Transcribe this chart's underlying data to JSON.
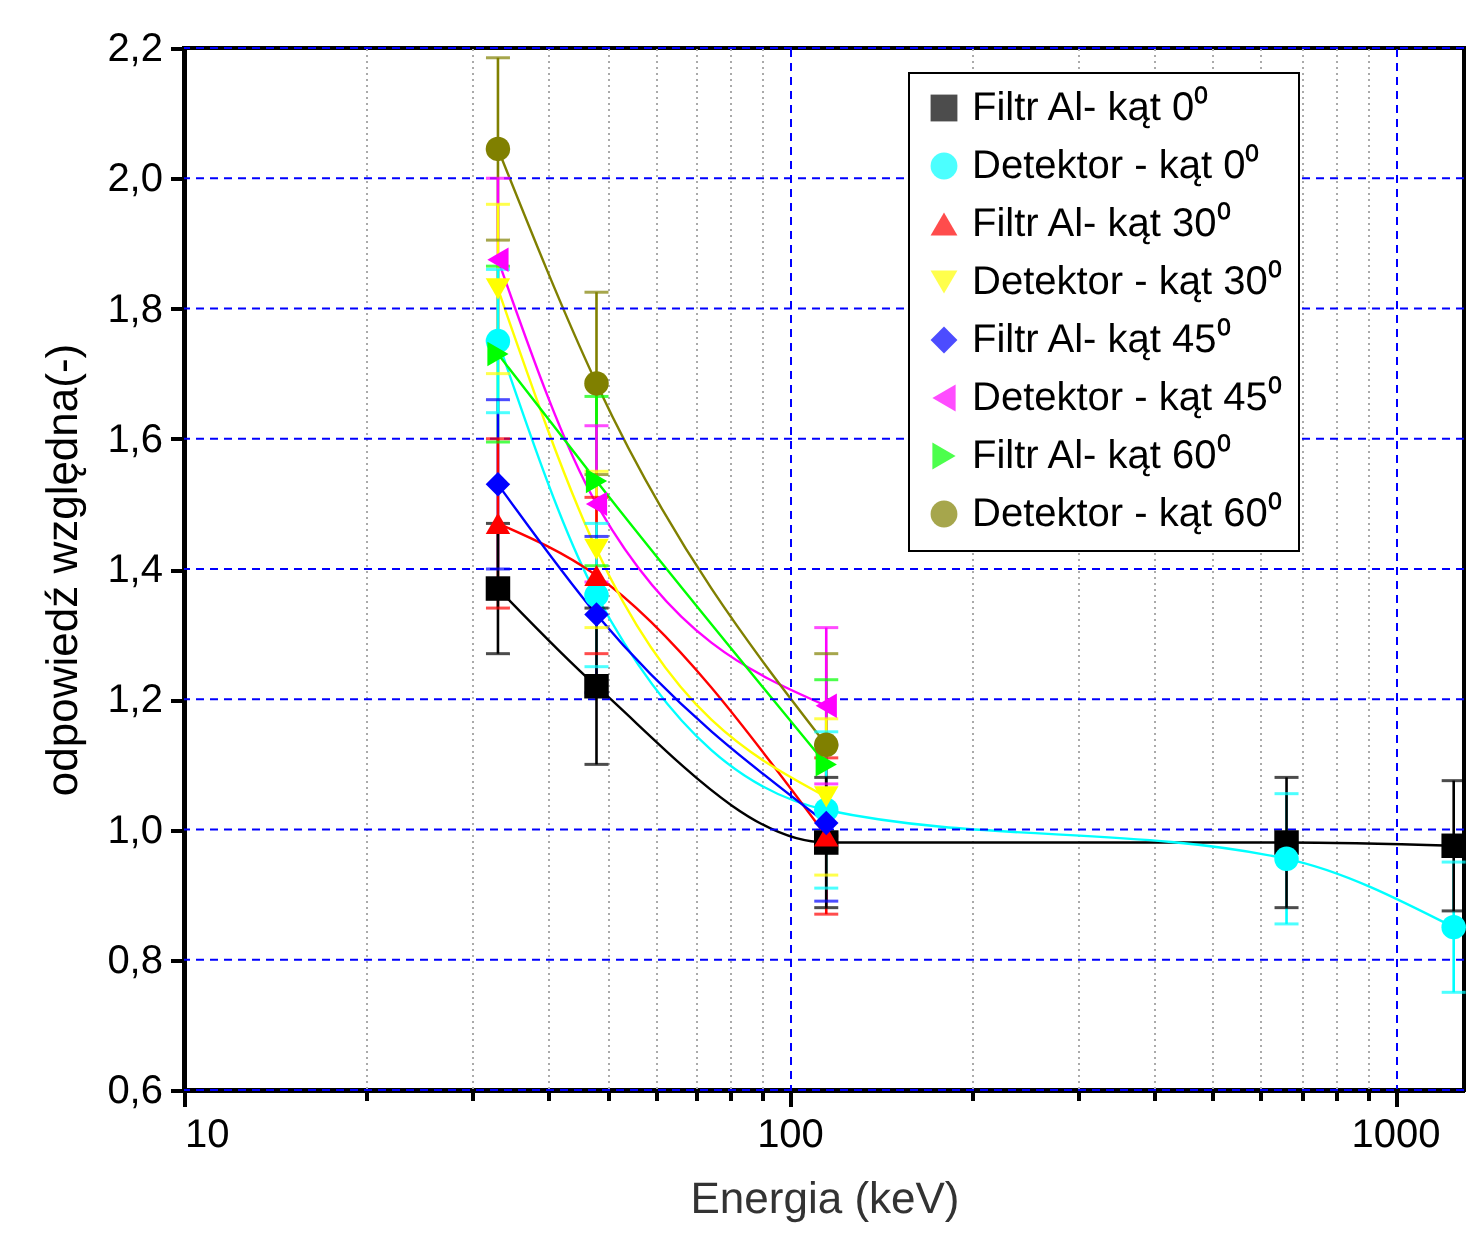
{
  "chart_data": {
    "type": "line",
    "xlabel": "Energia (keV)",
    "ylabel": "odpowiedź względna(-)",
    "log": "x",
    "grid": true,
    "legend": "top right",
    "line_style": "solid",
    "xlim": [
      10,
      1300
    ],
    "ylim": [
      0.6,
      2.2
    ],
    "xticks": [
      10,
      {
        "value": 20,
        "label": null
      },
      {
        "value": 30,
        "label": null
      },
      {
        "value": 40,
        "label": null
      },
      {
        "value": 50,
        "label": null
      },
      {
        "value": 60,
        "label": null
      },
      {
        "value": 70,
        "label": null
      },
      {
        "value": 80,
        "label": null
      },
      {
        "value": 90,
        "label": null
      },
      100,
      {
        "value": 200,
        "label": null
      },
      {
        "value": 300,
        "label": null
      },
      {
        "value": 400,
        "label": null
      },
      {
        "value": 500,
        "label": null
      },
      {
        "value": 600,
        "label": null
      },
      {
        "value": 700,
        "label": null
      },
      {
        "value": 800,
        "label": null
      },
      {
        "value": 900,
        "label": null
      },
      1000
    ],
    "yticks": [
      {
        "value": 0.6,
        "label": "0,6"
      },
      {
        "value": 0.8,
        "label": "0,8"
      },
      {
        "value": 1.0,
        "label": "1,0"
      },
      {
        "value": 1.2,
        "label": "1,2"
      },
      {
        "value": 1.4,
        "label": "1,4"
      },
      {
        "value": 1.6,
        "label": "1,6"
      },
      {
        "value": 1.8,
        "label": "1,8"
      },
      {
        "value": 2.0,
        "label": "2,0"
      },
      {
        "value": 2.2,
        "label": "2,2"
      }
    ],
    "series": [
      {
        "name": "Filtr Al- kąt 0⁰",
        "color": "#000000",
        "marker": "square",
        "x": [
          33,
          48,
          115,
          662,
          1250
        ],
        "values": [
          1.37,
          1.22,
          0.98,
          0.98,
          0.975
        ],
        "errors": [
          0.1,
          0.12,
          0.1,
          0.1,
          0.1
        ]
      },
      {
        "name": "Detektor - kąt 0⁰",
        "color": "#00ffff",
        "marker": "circle",
        "x": [
          33,
          48,
          115,
          662,
          1250
        ],
        "values": [
          1.75,
          1.36,
          1.03,
          0.955,
          0.85
        ],
        "errors": [
          0.11,
          0.11,
          0.12,
          0.1,
          0.1
        ]
      },
      {
        "name": "Filtr Al- kąt 30⁰",
        "color": "#ff0000",
        "marker": "triangle",
        "x": [
          33,
          48,
          115
        ],
        "values": [
          1.47,
          1.39,
          0.99
        ],
        "errors": [
          0.13,
          0.12,
          0.12
        ]
      },
      {
        "name": "Detektor - kąt 30⁰",
        "color": "#ffff00",
        "marker": "triangle-down",
        "x": [
          33,
          48,
          115
        ],
        "values": [
          1.83,
          1.43,
          1.05
        ],
        "errors": [
          0.13,
          0.12,
          0.12
        ]
      },
      {
        "name": "Filtr Al- kąt 45⁰",
        "color": "#0000ff",
        "marker": "diamond",
        "x": [
          33,
          48,
          115
        ],
        "values": [
          1.53,
          1.33,
          1.01
        ],
        "errors": [
          0.13,
          0.12,
          0.12
        ]
      },
      {
        "name": "Detektor - kąt 45⁰",
        "color": "#ff00ff",
        "marker": "triangle-left",
        "x": [
          33,
          48,
          115
        ],
        "values": [
          1.875,
          1.5,
          1.19
        ],
        "errors": [
          0.125,
          0.12,
          0.12
        ]
      },
      {
        "name": "Filtr Al- kąt 60⁰",
        "color": "#00ff00",
        "marker": "triangle-right",
        "x": [
          33,
          48,
          115
        ],
        "values": [
          1.73,
          1.535,
          1.1
        ],
        "errors": [
          0.135,
          0.13,
          0.13
        ]
      },
      {
        "name": "Detektor - kąt 60⁰",
        "color": "#808000",
        "marker": "circle",
        "x": [
          33,
          48,
          115
        ],
        "values": [
          2.045,
          1.685,
          1.13
        ],
        "errors": [
          0.14,
          0.14,
          0.14
        ]
      }
    ]
  }
}
